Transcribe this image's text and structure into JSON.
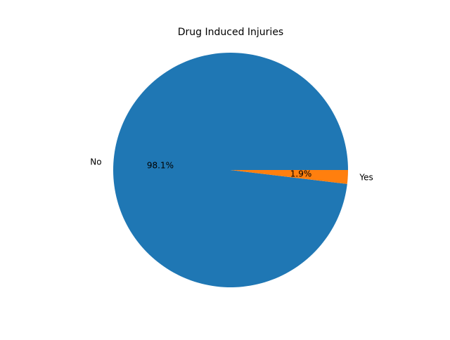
{
  "chart_data": {
    "type": "pie",
    "title": "Drug Induced Injuries",
    "slices": [
      {
        "label": "No",
        "value": 98.1,
        "pct_label": "98.1%",
        "color": "#1f77b4"
      },
      {
        "label": "Yes",
        "value": 1.9,
        "pct_label": "1.9%",
        "color": "#ff7f0e"
      }
    ],
    "start_angle_deg": 0,
    "direction": "counterclockwise",
    "legend": "none"
  }
}
